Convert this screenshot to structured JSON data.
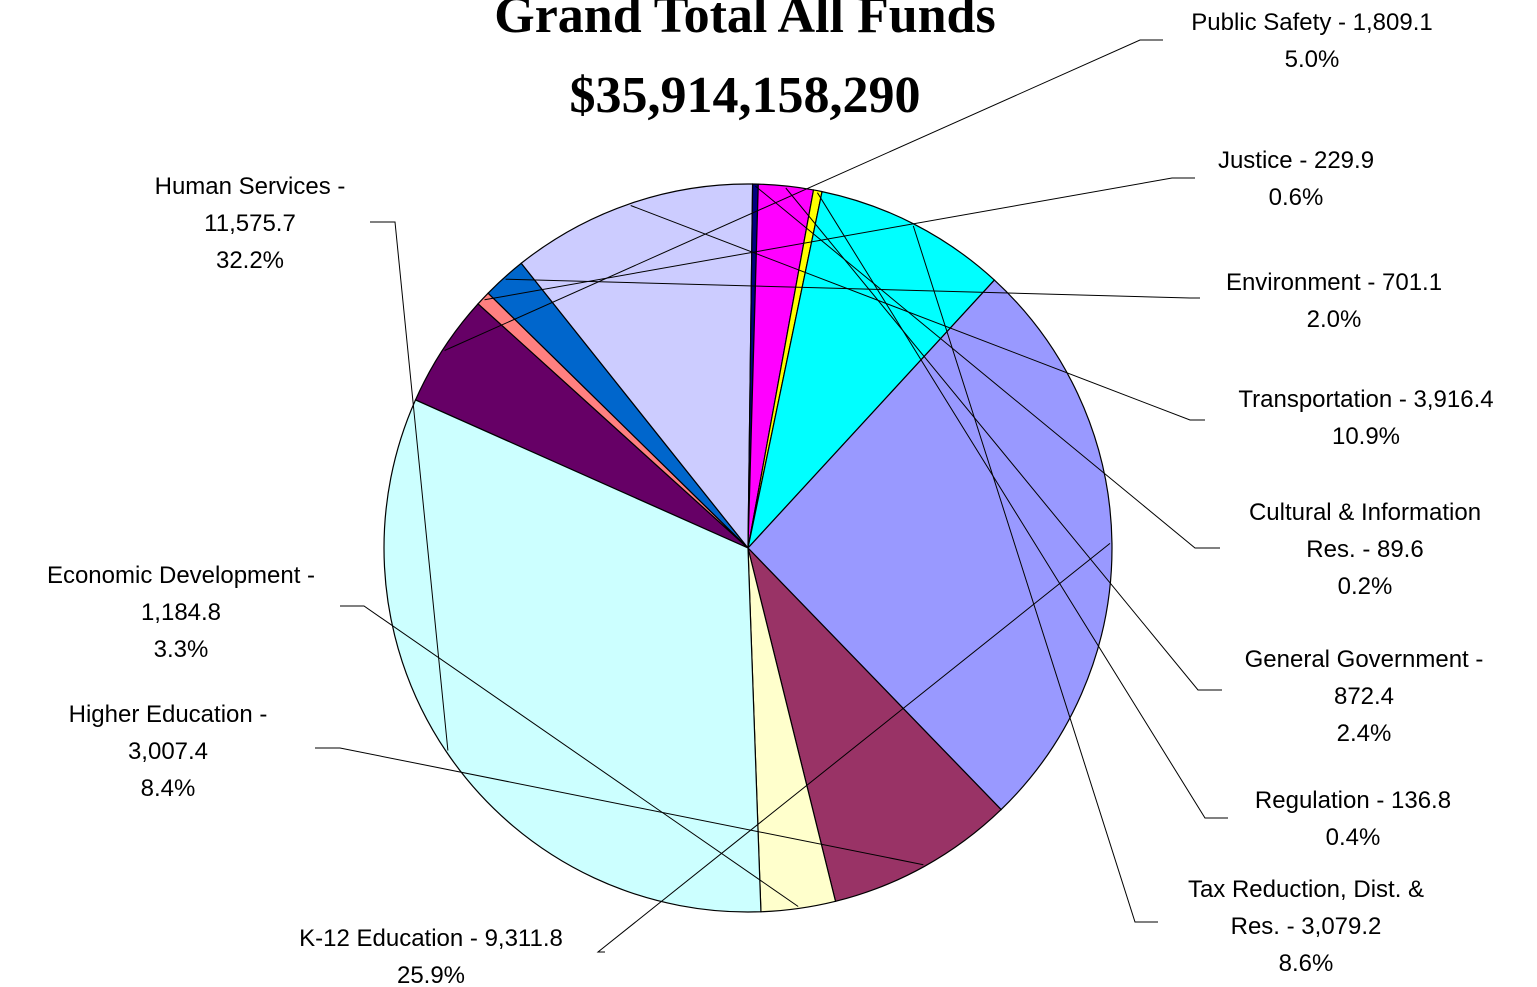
{
  "chart_data": {
    "type": "pie",
    "title": "Grand Total All Funds",
    "subtitle": "$35,914,158,290",
    "slices": [
      {
        "name": "Public Safety",
        "value": 1809.1,
        "value_label": "1,809.1",
        "percent": "5.0%",
        "color": "#660066",
        "label_lines": [
          "Public Safety - 1,809.1"
        ]
      },
      {
        "name": "Justice",
        "value": 229.9,
        "value_label": "229.9",
        "percent": "0.6%",
        "color": "#ff8080",
        "label_lines": [
          "Justice - 229.9"
        ]
      },
      {
        "name": "Environment",
        "value": 701.1,
        "value_label": "701.1",
        "percent": "2.0%",
        "color": "#0066cc",
        "label_lines": [
          "Environment - 701.1"
        ]
      },
      {
        "name": "Transportation",
        "value": 3916.4,
        "value_label": "3,916.4",
        "percent": "10.9%",
        "color": "#ccccff",
        "label_lines": [
          "Transportation - 3,916.4"
        ]
      },
      {
        "name": "Cultural & Information Res.",
        "value": 89.6,
        "value_label": "89.6",
        "percent": "0.2%",
        "color": "#000080",
        "label_lines": [
          "Cultural & Information",
          "Res. - 89.6"
        ]
      },
      {
        "name": "General Government",
        "value": 872.4,
        "value_label": "872.4",
        "percent": "2.4%",
        "color": "#ff00ff",
        "label_lines": [
          "General Government -",
          "872.4"
        ]
      },
      {
        "name": "Regulation",
        "value": 136.8,
        "value_label": "136.8",
        "percent": "0.4%",
        "color": "#ffff00",
        "label_lines": [
          "Regulation - 136.8"
        ]
      },
      {
        "name": "Tax Reduction, Dist. & Res.",
        "value": 3079.2,
        "value_label": "3,079.2",
        "percent": "8.6%",
        "color": "#00ffff",
        "label_lines": [
          "Tax Reduction, Dist. &",
          "Res. - 3,079.2"
        ]
      },
      {
        "name": "K-12 Education",
        "value": 9311.8,
        "value_label": "9,311.8",
        "percent": "25.9%",
        "color": "#9999ff",
        "label_lines": [
          "K-12 Education - 9,311.8"
        ]
      },
      {
        "name": "Higher Education",
        "value": 3007.4,
        "value_label": "3,007.4",
        "percent": "8.4%",
        "color": "#993366",
        "label_lines": [
          "Higher Education -",
          "3,007.4"
        ]
      },
      {
        "name": "Economic Development",
        "value": 1184.8,
        "value_label": "1,184.8",
        "percent": "3.3%",
        "color": "#ffffcc",
        "label_lines": [
          "Economic Development -",
          "1,184.8"
        ]
      },
      {
        "name": "Human Services",
        "value": 11575.7,
        "value_label": "11,575.7",
        "percent": "32.2%",
        "color": "#ccffff",
        "label_lines": [
          "Human Services -",
          "11,575.7"
        ]
      }
    ],
    "legend": "none",
    "label_style": "outside with leader lines"
  }
}
